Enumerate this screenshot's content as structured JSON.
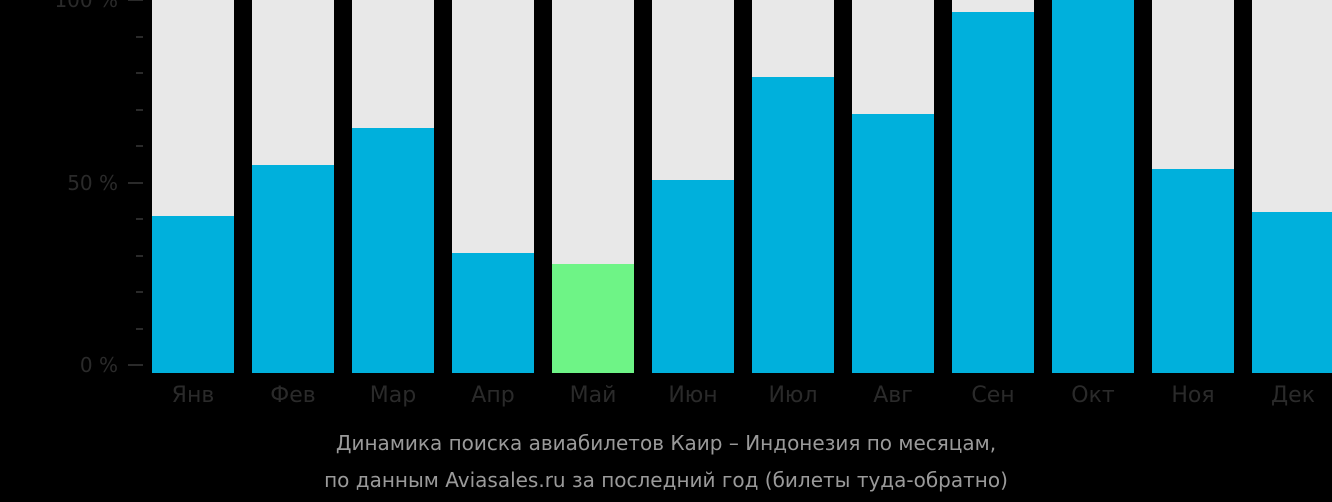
{
  "chart_data": {
    "type": "bar",
    "title": "Динамика поиска авиабилетов Каир – Индонезия по месяцам,",
    "subtitle": "по данным Aviasales.ru за последний год (билеты туда-обратно)",
    "categories": [
      "Янв",
      "Фев",
      "Мар",
      "Апр",
      "Май",
      "Июн",
      "Июл",
      "Авг",
      "Сен",
      "Окт",
      "Ноя",
      "Дек"
    ],
    "values": [
      43,
      57,
      67,
      33,
      30,
      53,
      81,
      71,
      99,
      100,
      56,
      44
    ],
    "highlight_index": 4,
    "xlabel": "",
    "ylabel": "",
    "ylim": [
      0,
      100
    ],
    "yticks": [
      "0 %",
      "50 %",
      "100 %"
    ],
    "minor_ticks_between": 4,
    "grid": false,
    "legend": "none",
    "colors": {
      "bar": "#00b0dc",
      "highlight": "#6ef486",
      "track": "#e8e8e8",
      "background": "#000000",
      "axis_text": "#2a2a2a",
      "caption_text": "#9a9a9a"
    }
  }
}
